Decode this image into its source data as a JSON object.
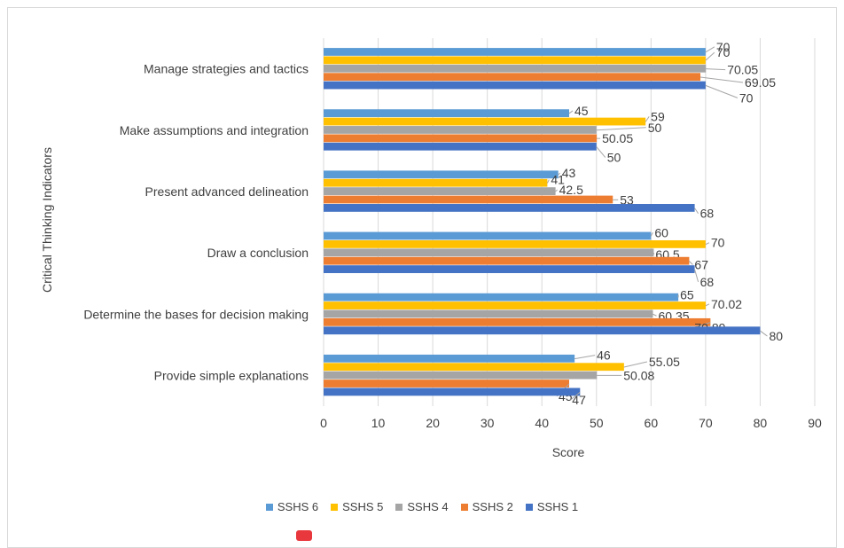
{
  "chart_data": {
    "type": "bar",
    "orientation": "horizontal",
    "categories": [
      "Provide simple explanations",
      "Determine the bases for decision making",
      "Draw a conclusion",
      "Present advanced delineation",
      "Make assumptions and integration",
      "Manage strategies and tactics"
    ],
    "series": [
      {
        "name": "SSHS 6",
        "color": "#5b9bd5",
        "values": [
          46,
          65,
          60,
          43,
          45,
          70
        ]
      },
      {
        "name": "SSHS 5",
        "color": "#ffc000",
        "values": [
          55.05,
          70.02,
          70,
          41,
          59,
          70
        ]
      },
      {
        "name": "SSHS 4",
        "color": "#a5a5a5",
        "values": [
          50.08,
          60.35,
          60.5,
          42.5,
          50,
          70.05
        ]
      },
      {
        "name": "SSHS 2",
        "color": "#ed7d31",
        "values": [
          45,
          70.89,
          67,
          53,
          50.05,
          69.05
        ]
      },
      {
        "name": "SSHS 1",
        "color": "#4472c4",
        "values": [
          47,
          80,
          68,
          68,
          50,
          70
        ]
      }
    ],
    "xlabel": "Score",
    "ylabel": "Critical Thinking Indicators",
    "xlim": [
      0,
      90
    ],
    "xticks": [
      0,
      10,
      20,
      30,
      40,
      50,
      60,
      70,
      80,
      90
    ],
    "grid": "vertical",
    "legend": "bottom"
  }
}
